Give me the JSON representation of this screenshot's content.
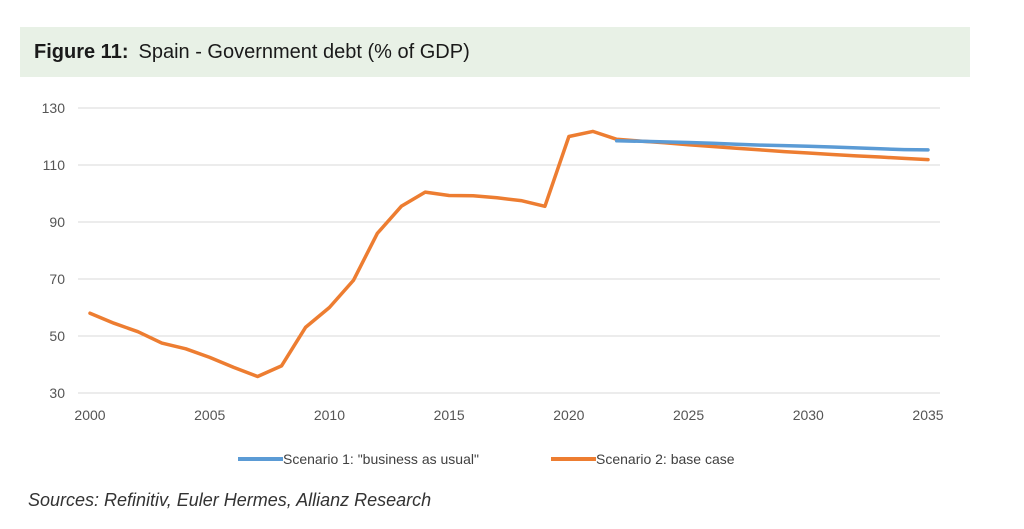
{
  "figure": {
    "label": "Figure 11:",
    "title": "Spain - Government debt (% of GDP)"
  },
  "source": "Sources: Refinitiv, Euler Hermes, Allianz Research",
  "chart_data": {
    "type": "line",
    "title": "Spain - Government debt (% of GDP)",
    "xlabel": "",
    "ylabel": "",
    "xlim": [
      2000,
      2035
    ],
    "ylim": [
      30,
      130
    ],
    "yticks": [
      30,
      50,
      70,
      90,
      110,
      130
    ],
    "xticks": [
      2000,
      2005,
      2010,
      2015,
      2020,
      2025,
      2030,
      2035
    ],
    "grid": "horizontal",
    "legend_position": "bottom",
    "series": [
      {
        "name": "Scenario 1: \"business as usual\"",
        "color": "#5b9bd5",
        "points": [
          [
            2022,
            118.5
          ],
          [
            2023,
            118.3
          ],
          [
            2024,
            118.1
          ],
          [
            2025,
            117.9
          ],
          [
            2026,
            117.6
          ],
          [
            2027,
            117.3
          ],
          [
            2028,
            117.0
          ],
          [
            2029,
            116.8
          ],
          [
            2030,
            116.6
          ],
          [
            2031,
            116.3
          ],
          [
            2032,
            116.0
          ],
          [
            2033,
            115.7
          ],
          [
            2034,
            115.4
          ],
          [
            2035,
            115.3
          ]
        ]
      },
      {
        "name": "Scenario 2: base case",
        "color": "#ed7d31",
        "points": [
          [
            2000,
            58
          ],
          [
            2001,
            54.5
          ],
          [
            2002,
            51.5
          ],
          [
            2003,
            47.5
          ],
          [
            2004,
            45.5
          ],
          [
            2005,
            42.5
          ],
          [
            2006,
            39
          ],
          [
            2007,
            35.8
          ],
          [
            2008,
            39.5
          ],
          [
            2009,
            53
          ],
          [
            2010,
            60
          ],
          [
            2011,
            69.5
          ],
          [
            2012,
            86
          ],
          [
            2013,
            95.5
          ],
          [
            2014,
            100.5
          ],
          [
            2015,
            99.3
          ],
          [
            2016,
            99.2
          ],
          [
            2017,
            98.5
          ],
          [
            2018,
            97.5
          ],
          [
            2019,
            95.5
          ],
          [
            2020,
            120
          ],
          [
            2021,
            121.8
          ],
          [
            2022,
            119
          ],
          [
            2023,
            118.4
          ],
          [
            2024,
            117.8
          ],
          [
            2025,
            117.1
          ],
          [
            2026,
            116.5
          ],
          [
            2027,
            115.9
          ],
          [
            2028,
            115.3
          ],
          [
            2029,
            114.7
          ],
          [
            2030,
            114.2
          ],
          [
            2031,
            113.7
          ],
          [
            2032,
            113.2
          ],
          [
            2033,
            112.8
          ],
          [
            2034,
            112.3
          ],
          [
            2035,
            111.9
          ]
        ]
      }
    ]
  }
}
